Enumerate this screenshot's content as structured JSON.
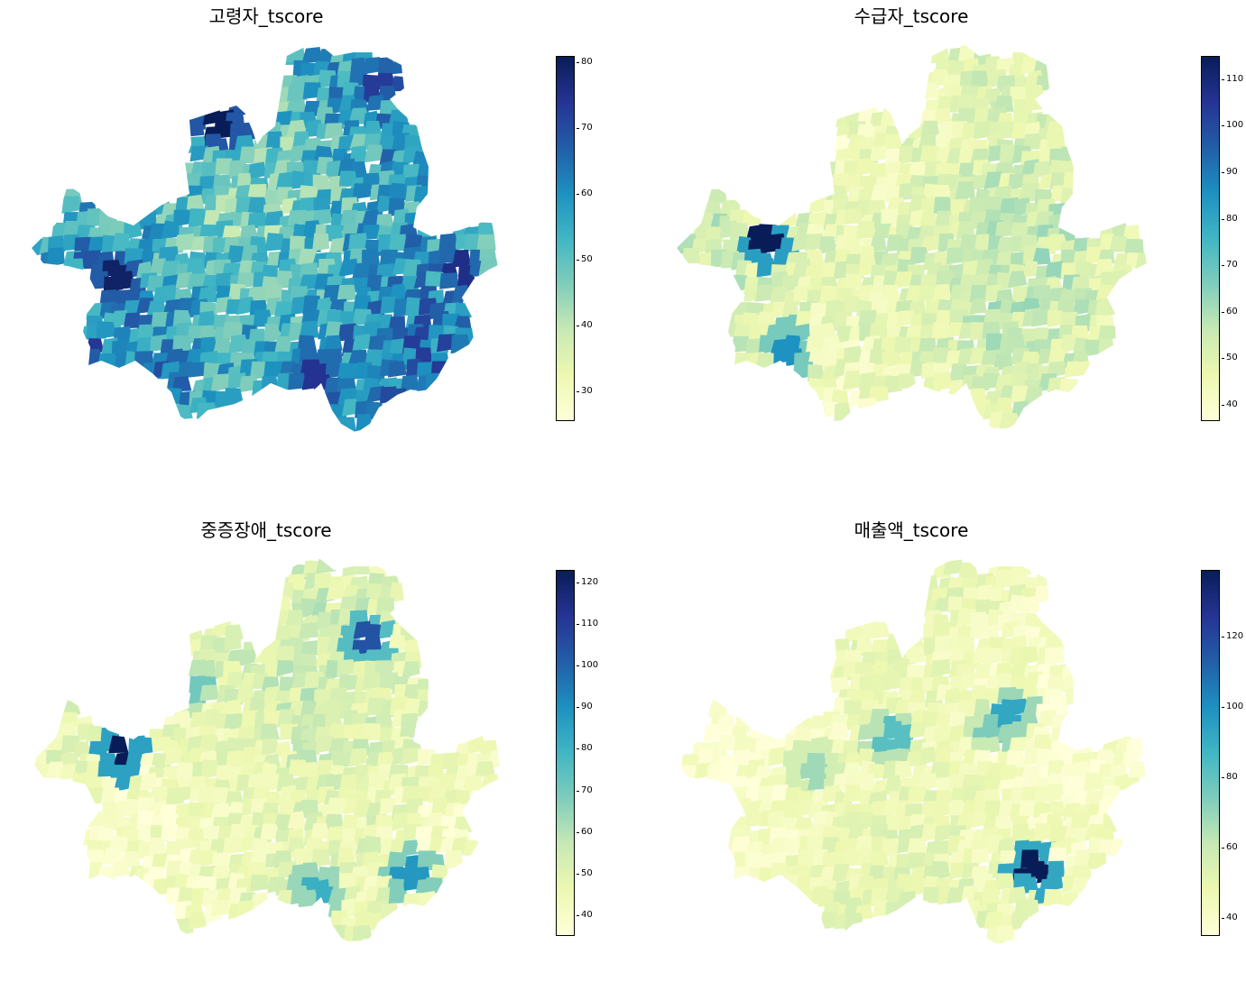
{
  "figure": {
    "colormap": "YlGnBu",
    "colormap_stops": [
      "#ffffd9",
      "#edf8b1",
      "#c7e9b4",
      "#7fcdbb",
      "#41b6c4",
      "#1d91c0",
      "#225ea8",
      "#253494",
      "#081d58"
    ]
  },
  "panels": [
    {
      "id": "p1",
      "title": "고령자_tscore",
      "colorbar": {
        "min": 25.5,
        "max": 81,
        "ticks": [
          30,
          40,
          50,
          60,
          70,
          80
        ]
      },
      "base_level": 0.55,
      "spread": 0.18,
      "hotspots": [
        {
          "level": 1.0
        },
        {
          "level": 0.97
        },
        {
          "level": 0.9
        },
        {
          "level": 0.88
        },
        {
          "level": 0.85
        }
      ]
    },
    {
      "id": "p2",
      "title": "수급자_tscore",
      "colorbar": {
        "min": 36.5,
        "max": 115,
        "ticks": [
          40,
          50,
          60,
          70,
          80,
          90,
          100,
          110
        ]
      },
      "base_level": 0.16,
      "spread": 0.1,
      "hotspots": [
        {
          "level": 1.0
        },
        {
          "level": 0.82
        },
        {
          "level": 0.62
        },
        {
          "level": 0.45
        },
        {
          "level": 0.4
        }
      ]
    },
    {
      "id": "p3",
      "title": "중증장애_tscore",
      "colorbar": {
        "min": 35,
        "max": 123,
        "ticks": [
          40,
          50,
          60,
          70,
          80,
          90,
          100,
          110,
          120
        ]
      },
      "base_level": 0.14,
      "spread": 0.09,
      "hotspots": [
        {
          "level": 1.0
        },
        {
          "level": 0.78
        },
        {
          "level": 0.6
        },
        {
          "level": 0.52
        },
        {
          "level": 0.4
        }
      ]
    },
    {
      "id": "p4",
      "title": "매출액_tscore",
      "colorbar": {
        "min": 35,
        "max": 139,
        "ticks": [
          40,
          60,
          80,
          100,
          120
        ]
      },
      "base_level": 0.1,
      "spread": 0.07,
      "hotspots": [
        {
          "level": 1.0
        },
        {
          "level": 0.55
        },
        {
          "level": 0.45
        },
        {
          "level": 0.38
        },
        {
          "level": 0.32
        }
      ]
    }
  ]
}
